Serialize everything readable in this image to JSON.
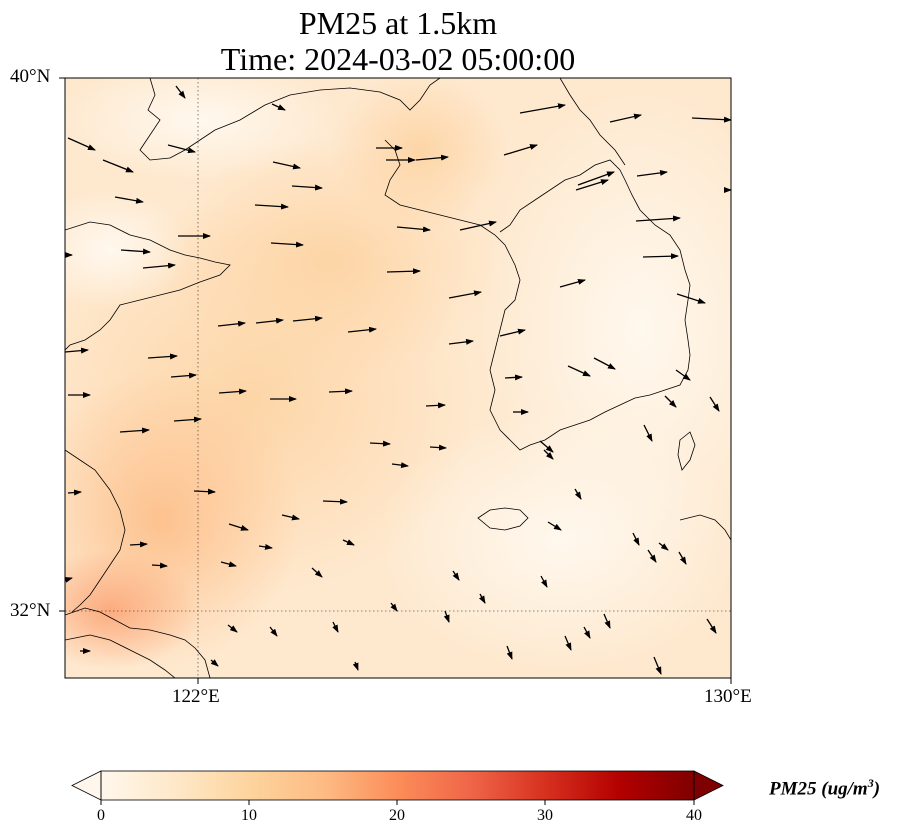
{
  "title": {
    "line1": "PM25 at 1.5km",
    "line2": "Time: 2024-03-02 05:00:00"
  },
  "axes": {
    "lat_labels": [
      "40°N",
      "32°N"
    ],
    "lon_labels": [
      "122°E",
      "130°E"
    ],
    "lat_range": [
      31.0,
      40.0
    ],
    "lon_range": [
      120.0,
      130.0
    ],
    "gridlines": "dotted at 122°E and 32°N"
  },
  "colorbar": {
    "label_text": "PM25 (ug/m",
    "label_exp": "3",
    "label_close": ")",
    "ticks": [
      "0",
      "10",
      "20",
      "30",
      "40"
    ],
    "range": [
      0,
      40
    ],
    "colormap": "OrRd",
    "extend": "both",
    "colors": [
      "#fff7ec",
      "#fee8c8",
      "#fdd49e",
      "#fdbb84",
      "#fc8d59",
      "#ef6548",
      "#d7301f",
      "#b30000",
      "#7f0000"
    ]
  },
  "map": {
    "field": "PM25",
    "level": "1.5km",
    "typical_values": "roughly 2-13 ug/m3, highest near the Yangtze delta (southwest corner) and over the Yellow Sea interior",
    "overlay": "wind vectors, mostly westerly to southeasterly",
    "coastline_color": "#000000"
  }
}
